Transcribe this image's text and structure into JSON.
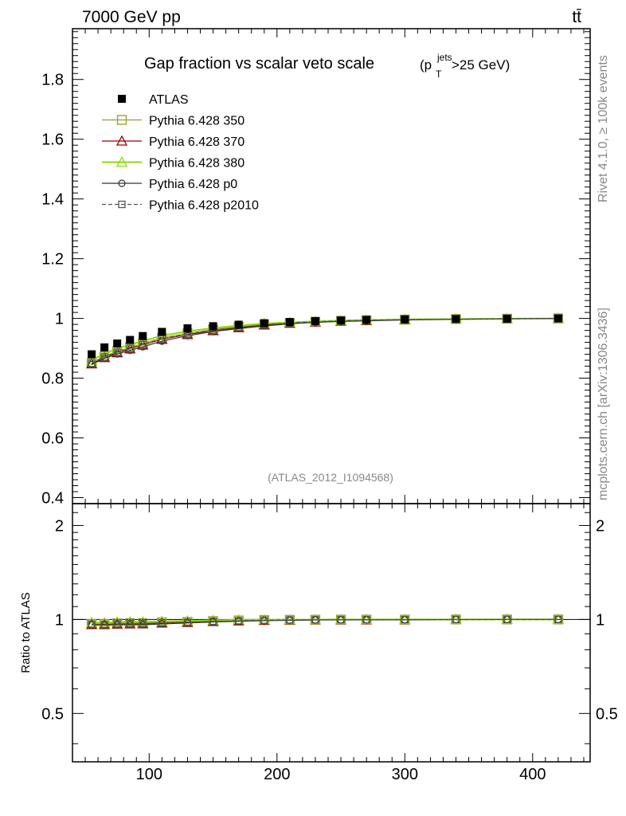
{
  "header": {
    "left_label": "7000 GeV pp",
    "right_label": "tt̄"
  },
  "side_labels": {
    "rivet": "Rivet 4.1.0, ≥ 100k events",
    "mcplots": "mcplots.cern.ch [arXiv:1306.3436]"
  },
  "chart_data": {
    "type": "line",
    "title": "Gap fraction vs scalar veto scale",
    "title_suffix": {
      "base": "(p",
      "sub": "T",
      "sup": "jets",
      "tail": ">25 GeV)"
    },
    "watermark": "(ATLAS_2012_I1094568)",
    "xlim": [
      40,
      445
    ],
    "ylim": [
      0.38,
      1.97
    ],
    "ratio_ylim": [
      0.35,
      2.35
    ],
    "ratio_ylabel": "Ratio to ATLAS",
    "x_ticks": [
      100,
      200,
      300,
      400
    ],
    "x_tick_labels": [
      "100",
      "200",
      "300",
      "400"
    ],
    "y_ticks": [
      0.4,
      0.6,
      0.8,
      1.0,
      1.2,
      1.4,
      1.6,
      1.8
    ],
    "y_tick_labels": [
      "0.4",
      "0.6",
      "0.8",
      "1",
      "1.2",
      "1.4",
      "1.6",
      "1.8"
    ],
    "ratio_ticks": [
      0.5,
      1,
      2
    ],
    "ratio_tick_labels": [
      "0.5",
      "1",
      "2"
    ],
    "x": [
      55,
      65,
      75,
      85,
      95,
      110,
      130,
      150,
      170,
      190,
      210,
      230,
      250,
      270,
      300,
      340,
      380,
      420
    ],
    "series": [
      {
        "name": "ATLAS",
        "marker": "square-filled",
        "color": "#000000",
        "values": [
          0.88,
          0.903,
          0.916,
          0.928,
          0.941,
          0.955,
          0.967,
          0.974,
          0.979,
          0.984,
          0.988,
          0.991,
          0.993,
          0.995,
          0.997,
          0.998,
          0.999,
          1.0
        ]
      },
      {
        "name": "Pythia 6.428 350",
        "marker": "square-open",
        "color": "#999933",
        "values": [
          0.851,
          0.873,
          0.89,
          0.903,
          0.916,
          0.935,
          0.95,
          0.963,
          0.972,
          0.98,
          0.985,
          0.989,
          0.992,
          0.994,
          0.996,
          0.998,
          0.999,
          1.0
        ]
      },
      {
        "name": "Pythia 6.428 370",
        "marker": "triangle-open",
        "color": "#990000",
        "values": [
          0.848,
          0.869,
          0.885,
          0.898,
          0.911,
          0.93,
          0.946,
          0.959,
          0.969,
          0.978,
          0.984,
          0.988,
          0.991,
          0.993,
          0.996,
          0.998,
          0.999,
          1.0
        ]
      },
      {
        "name": "Pythia 6.428 380",
        "marker": "triangle-open",
        "color": "#88dd00",
        "values": [
          0.86,
          0.882,
          0.899,
          0.912,
          0.924,
          0.942,
          0.957,
          0.968,
          0.976,
          0.983,
          0.987,
          0.99,
          0.993,
          0.995,
          0.997,
          0.998,
          0.999,
          1.0
        ]
      },
      {
        "name": "Pythia 6.428 p0",
        "marker": "circle-open",
        "color": "#333333",
        "values": [
          0.846,
          0.866,
          0.881,
          0.893,
          0.905,
          0.924,
          0.942,
          0.956,
          0.966,
          0.975,
          0.982,
          0.987,
          0.99,
          0.992,
          0.995,
          0.997,
          0.999,
          1.0
        ]
      },
      {
        "name": "Pythia 6.428 p2010",
        "marker": "square-open-dashed",
        "color": "#555555",
        "values": [
          0.85,
          0.871,
          0.887,
          0.9,
          0.913,
          0.932,
          0.948,
          0.961,
          0.97,
          0.979,
          0.985,
          0.989,
          0.992,
          0.994,
          0.996,
          0.998,
          0.999,
          1.0
        ]
      }
    ]
  }
}
